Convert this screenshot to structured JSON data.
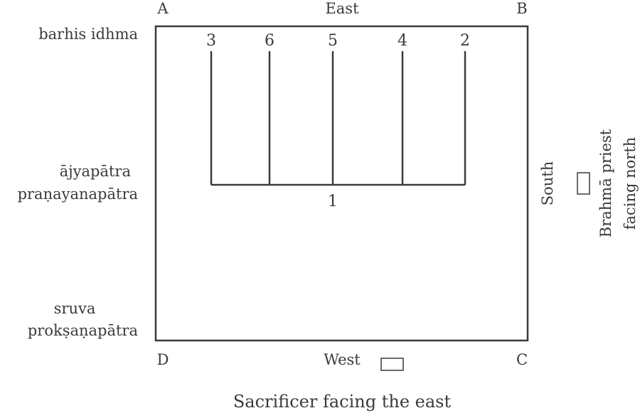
{
  "corners": {
    "a": "A",
    "b": "B",
    "c": "C",
    "d": "D"
  },
  "directions": {
    "east": "East",
    "west": "West",
    "south": "South"
  },
  "left_labels": {
    "barhis": "barhis idhma",
    "ajyapatra": "ājyapātra",
    "pranayanapatra": "praṇayanapātra",
    "sruva": "sruva",
    "proksanapatra": "prokṣaṇapātra"
  },
  "lines": {
    "top_numbers": [
      "3",
      "6",
      "5",
      "4",
      "2"
    ],
    "base_number": "1"
  },
  "brahma": {
    "line1": "Brahmā priest",
    "line2": "facing north"
  },
  "caption": "Sacrificer facing the east"
}
